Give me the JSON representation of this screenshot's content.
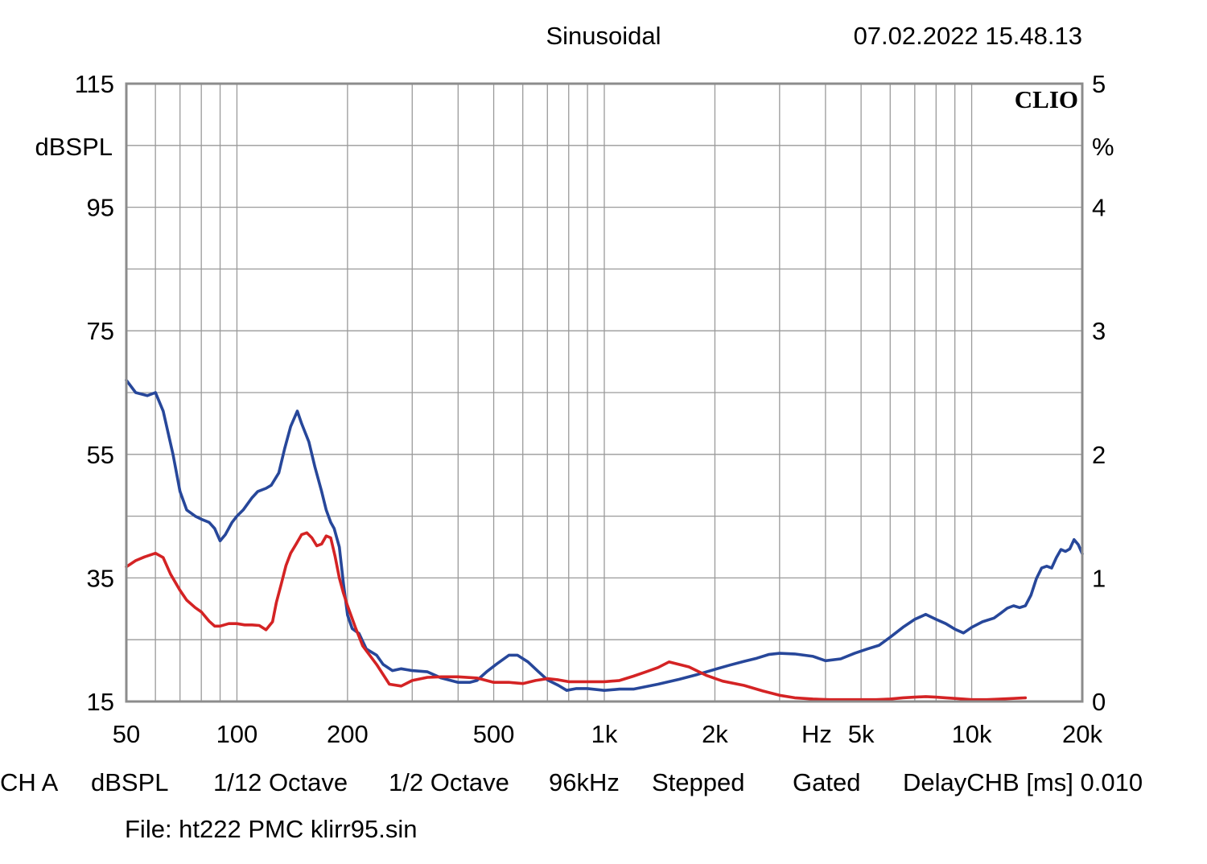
{
  "header": {
    "title": "Sinusoidal",
    "timestamp": "07.02.2022 15.48.13"
  },
  "brand": "CLIO",
  "footer": {
    "channel": "CH A",
    "unit": "dBSPL",
    "resolution": "1/12 Octave",
    "smoothing": "1/2 Octave",
    "sample_rate": "96kHz",
    "mode": "Stepped",
    "window": "Gated",
    "delay": "DelayCHB [ms] 0.010",
    "file": "File: ht222 PMC klirr95.sin"
  },
  "colors": {
    "blue": "#27479a",
    "red": "#d42324",
    "grid": "#9a9a9a",
    "frame": "#8c8c8c"
  },
  "chart_data": {
    "type": "line",
    "xscale": "log",
    "xlim": [
      50,
      20000
    ],
    "xlabel": "Hz",
    "x_ticks": [
      50,
      100,
      200,
      500,
      1000,
      2000,
      5000,
      10000,
      20000
    ],
    "x_tick_labels": [
      "50",
      "100",
      "200",
      "500",
      "1k",
      "2k",
      "5k",
      "10k",
      "20k"
    ],
    "ylabel": "dBSPL",
    "ylim": [
      15,
      115
    ],
    "y_ticks": [
      15,
      35,
      55,
      75,
      95,
      115
    ],
    "y_tick_labels": [
      "15",
      "35",
      "55",
      "75",
      "95",
      "115"
    ],
    "y2label": "%",
    "y2lim": [
      0,
      5
    ],
    "y2_ticks": [
      0,
      1,
      2,
      3,
      4,
      5
    ],
    "y2_tick_labels": [
      "0",
      "1",
      "2",
      "3",
      "4",
      "5"
    ],
    "grid": true,
    "series": [
      {
        "color": "#27479a",
        "axis": "left",
        "x": [
          50,
          53,
          57,
          60,
          63,
          67,
          70,
          73,
          77,
          80,
          84,
          87,
          90,
          93,
          97,
          100,
          104,
          110,
          114,
          120,
          124,
          130,
          135,
          140,
          146,
          150,
          157,
          163,
          170,
          175,
          180,
          184,
          190,
          195,
          200,
          206,
          215,
          225,
          240,
          250,
          265,
          280,
          300,
          330,
          360,
          400,
          430,
          450,
          480,
          510,
          550,
          580,
          620,
          660,
          700,
          750,
          790,
          840,
          900,
          1000,
          1100,
          1200,
          1400,
          1600,
          1800,
          2000,
          2200,
          2400,
          2600,
          2800,
          3000,
          3300,
          3700,
          4000,
          4400,
          4800,
          5200,
          5600,
          6000,
          6500,
          7000,
          7500,
          8000,
          8500,
          9000,
          9500,
          10000,
          10700,
          11500,
          12000,
          12500,
          13000,
          13500,
          14000,
          14500,
          15000,
          15500,
          16000,
          16500,
          17000,
          17500,
          18000,
          18500,
          19000,
          19500,
          20000
        ],
        "y": [
          67,
          65,
          64.5,
          65,
          62,
          55,
          49,
          46,
          45,
          44.5,
          44,
          43,
          41,
          42,
          44,
          45,
          46,
          48,
          49,
          49.5,
          50,
          52,
          56,
          59.5,
          62,
          60,
          57,
          53,
          49,
          46,
          44,
          43,
          40,
          34,
          29,
          26.8,
          26,
          23.5,
          22.5,
          21,
          20,
          20.3,
          20,
          19.8,
          18.8,
          18.1,
          18.1,
          18.4,
          19.9,
          21.1,
          22.5,
          22.5,
          21.4,
          19.9,
          18.5,
          17.6,
          16.8,
          17.1,
          17.1,
          16.8,
          17,
          17,
          17.8,
          18.6,
          19.4,
          20.2,
          20.9,
          21.5,
          22,
          22.6,
          22.8,
          22.7,
          22.3,
          21.6,
          21.9,
          22.8,
          23.5,
          24.1,
          25.4,
          27,
          28.3,
          29.1,
          28.3,
          27.6,
          26.7,
          26.1,
          27,
          27.9,
          28.5,
          29.3,
          30.1,
          30.5,
          30.2,
          30.5,
          32.2,
          34.9,
          36.6,
          36.9,
          36.6,
          38.3,
          39.6,
          39.3,
          39.7,
          41.2,
          40.4,
          38.9
        ]
      },
      {
        "color": "#d42324",
        "axis": "left",
        "x": [
          50,
          53,
          56,
          60,
          63,
          66,
          70,
          73,
          77,
          80,
          84,
          87,
          90,
          95,
          100,
          105,
          110,
          115,
          120,
          125,
          128,
          132,
          136,
          140,
          145,
          150,
          155,
          160,
          165,
          170,
          175,
          180,
          185,
          190,
          195,
          200,
          210,
          220,
          240,
          260,
          280,
          300,
          330,
          360,
          400,
          450,
          500,
          550,
          600,
          650,
          700,
          750,
          800,
          900,
          1000,
          1100,
          1200,
          1300,
          1400,
          1500,
          1700,
          1900,
          2100,
          2400,
          2700,
          3000,
          3300,
          3700,
          4100,
          4500,
          5000,
          5500,
          6000,
          6500,
          7000,
          7500,
          8000,
          8500,
          9000,
          9500,
          10000,
          11000,
          12000,
          13000,
          14000
        ],
        "y": [
          36.8,
          37.8,
          38.4,
          39,
          38.3,
          35.6,
          33,
          31.4,
          30.2,
          29.5,
          28,
          27.2,
          27.2,
          27.6,
          27.6,
          27.4,
          27.4,
          27.3,
          26.6,
          27.9,
          31,
          34,
          37,
          39,
          40.5,
          42,
          42.3,
          41.5,
          40.2,
          40.5,
          41.8,
          41.5,
          38.5,
          35,
          32.5,
          30.5,
          27,
          24,
          21,
          17.8,
          17.5,
          18.4,
          18.9,
          19,
          19,
          18.8,
          18.1,
          18.1,
          17.9,
          18.4,
          18.7,
          18.5,
          18.2,
          18.2,
          18.2,
          18.4,
          19.1,
          19.8,
          20.5,
          21.4,
          20.6,
          19.2,
          18.3,
          17.6,
          16.7,
          16,
          15.6,
          15.4,
          15.3,
          15.3,
          15.3,
          15.3,
          15.4,
          15.6,
          15.7,
          15.8,
          15.7,
          15.6,
          15.5,
          15.4,
          15.3,
          15.3,
          15.4,
          15.5,
          15.6
        ]
      }
    ]
  }
}
